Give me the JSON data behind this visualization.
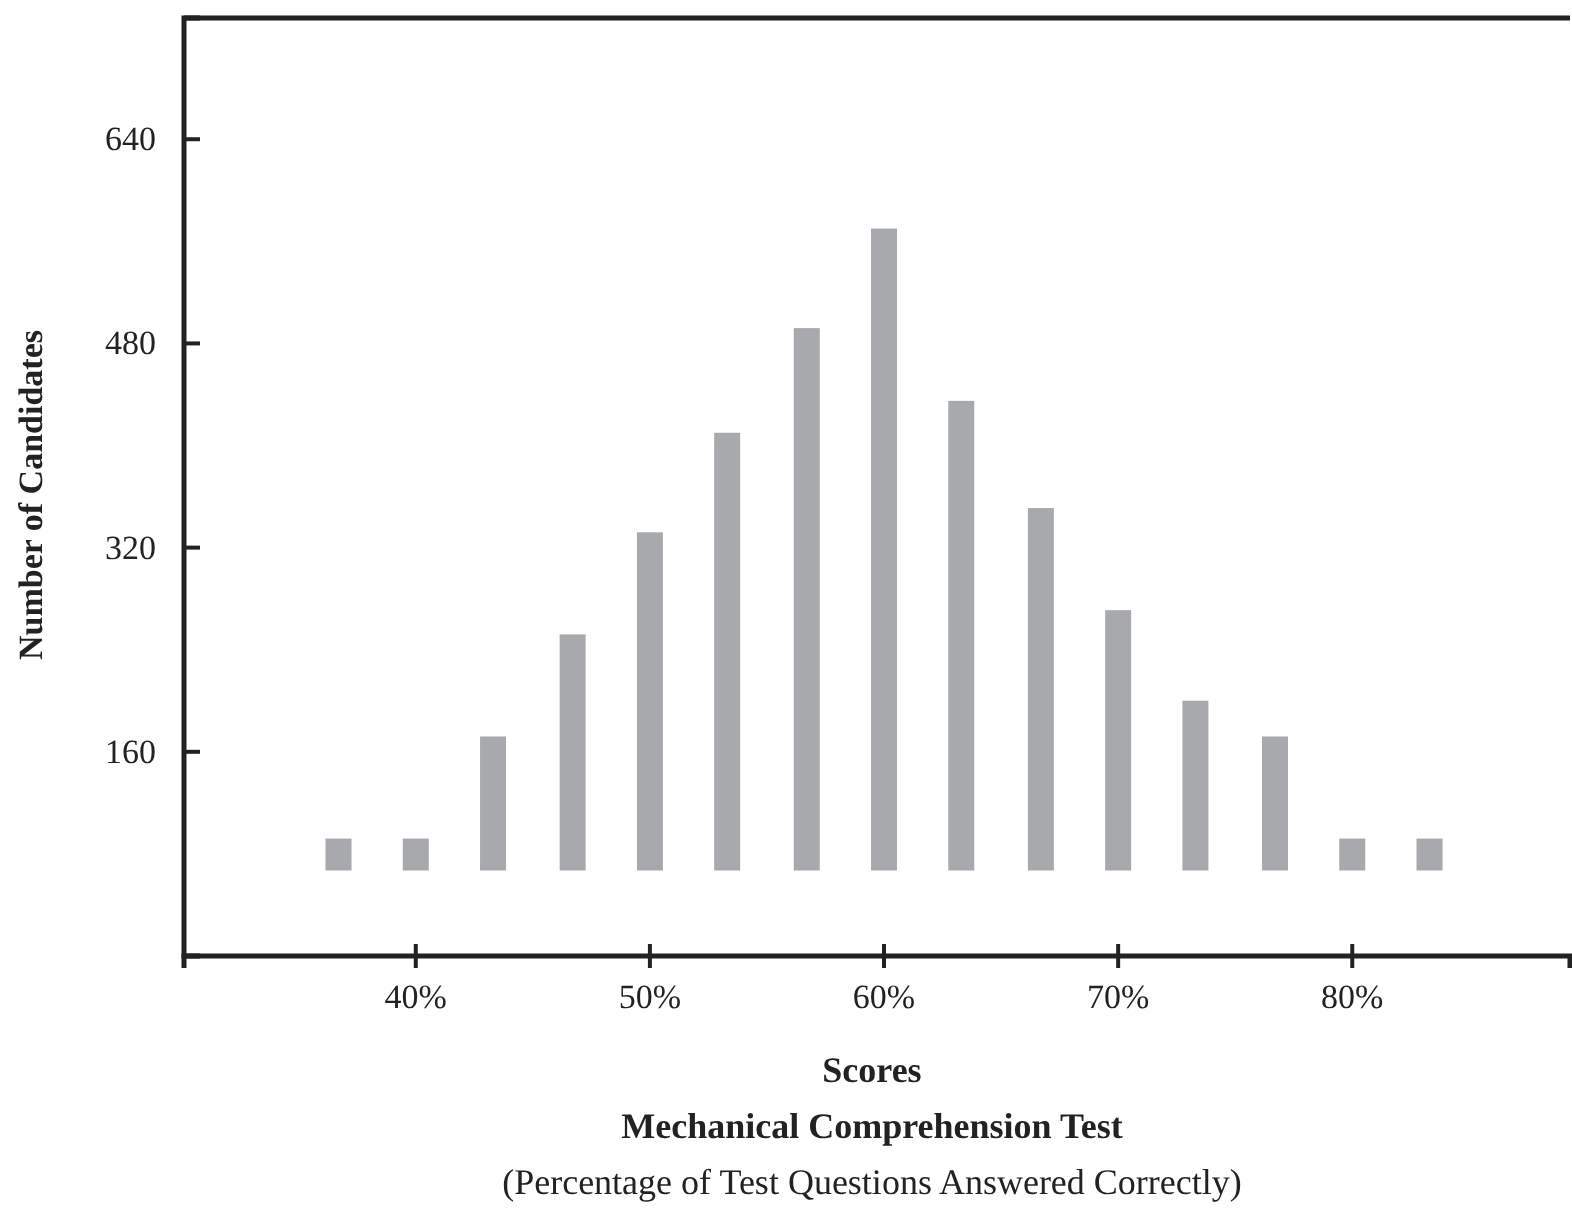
{
  "chart_data": {
    "type": "bar",
    "title": "Mechanical Comprehension Test",
    "subtitle": "(Percentage of Test Questions Answered Correctly)",
    "xlabel": "Scores",
    "ylabel": "Number of Candidates",
    "x": [
      36.7,
      40,
      43.3,
      46.7,
      50,
      53.3,
      56.7,
      60,
      63.3,
      66.7,
      70,
      73.3,
      76.7,
      80,
      83.3
    ],
    "base": [
      67,
      67,
      67,
      67,
      67,
      67,
      67,
      67,
      67,
      67,
      67,
      67,
      67,
      67,
      67
    ],
    "values": [
      25,
      25,
      105,
      185,
      265,
      343,
      425,
      503,
      368,
      284,
      204,
      133,
      105,
      25,
      25
    ],
    "color": "#a8a9ad",
    "xlim": [
      30.1,
      89.3
    ],
    "xticks": [
      {
        "value": 40,
        "label": "40%"
      },
      {
        "value": 50,
        "label": "50%"
      },
      {
        "value": 60,
        "label": "60%"
      },
      {
        "value": 70,
        "label": "70%"
      },
      {
        "value": 80,
        "label": "80%"
      }
    ],
    "ylim": [
      0,
      735
    ],
    "yticks": [
      160,
      320,
      480,
      640
    ]
  }
}
